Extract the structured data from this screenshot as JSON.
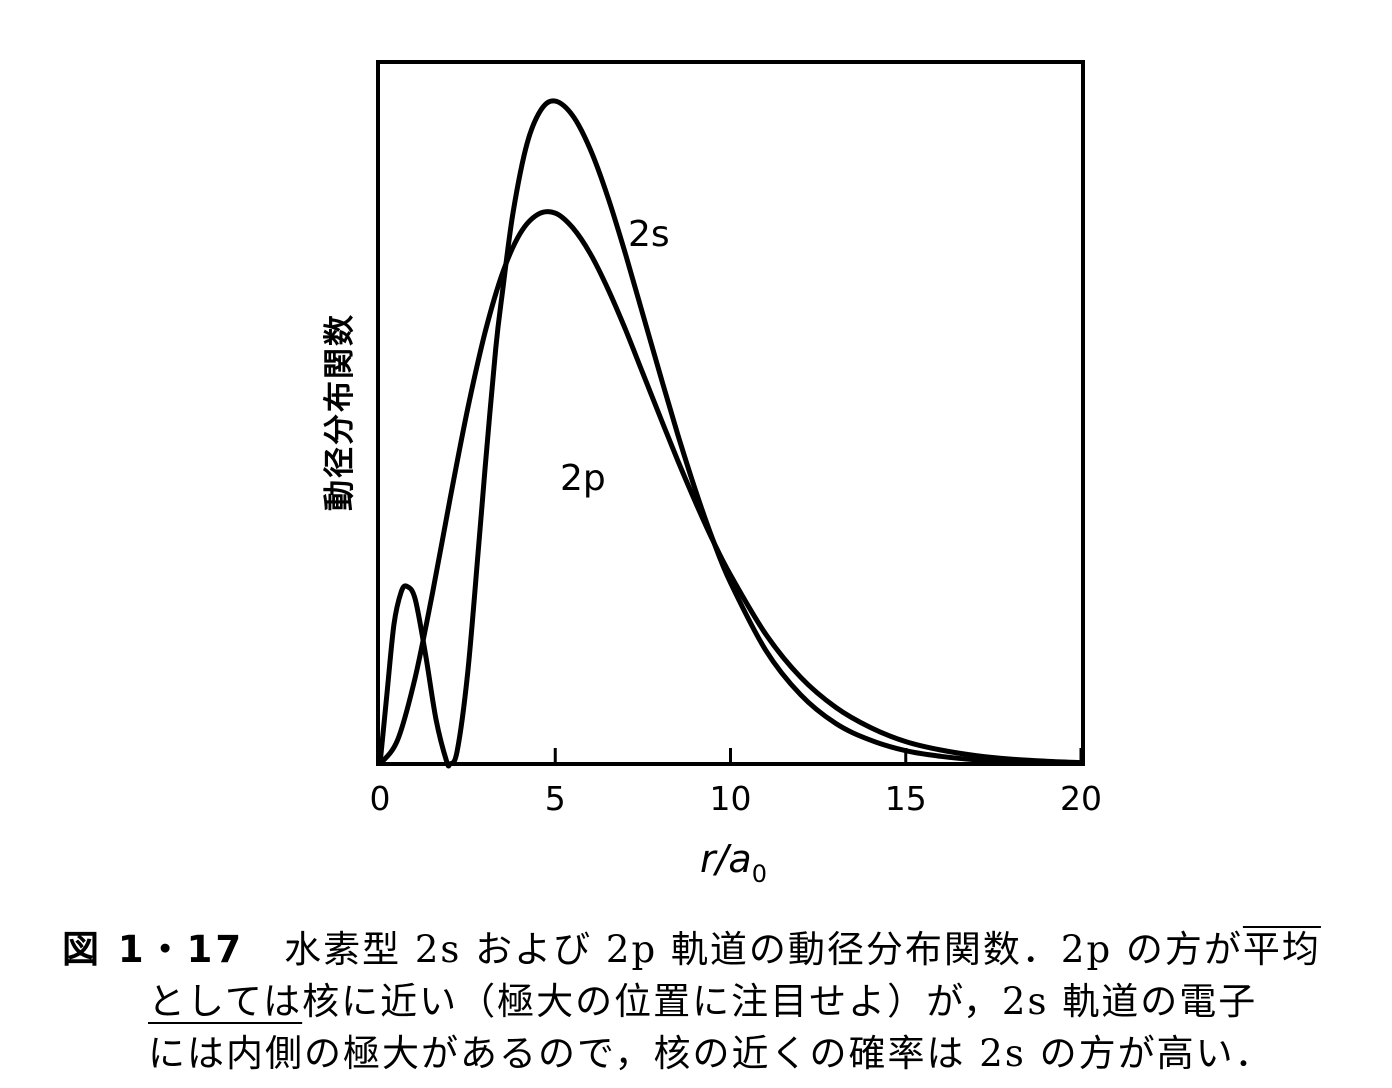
{
  "chart_data": {
    "type": "line",
    "title": "",
    "xlabel": "r/a0",
    "xlabel_main": "r/a",
    "xlabel_sub": "0",
    "ylabel": "動径分布関数",
    "xlim": [
      0,
      20
    ],
    "ylim": [
      0,
      1.0
    ],
    "x_ticks": [
      0,
      5,
      10,
      15,
      20
    ],
    "x_tick_labels": [
      "0",
      "5",
      "10",
      "15",
      "20"
    ],
    "grid": false,
    "legend": "none (curves labeled directly)",
    "series": [
      {
        "name": "2s",
        "x": [
          0,
          0.2,
          0.4,
          0.6,
          0.76,
          1.0,
          1.3,
          1.6,
          1.9,
          2.0,
          2.2,
          2.5,
          2.8,
          3.0,
          3.3,
          3.5,
          3.8,
          4.2,
          4.6,
          5.0,
          5.5,
          6.0,
          6.5,
          7.0,
          7.5,
          8.0,
          8.5,
          9.0,
          9.5,
          10.0,
          11.0,
          12.0,
          13.0,
          14.0,
          15.0,
          16.0,
          17.0,
          18.0,
          19.0,
          20.0
        ],
        "y": [
          0,
          0.101,
          0.2,
          0.245,
          0.254,
          0.236,
          0.156,
          0.063,
          0.004,
          0,
          0.018,
          0.129,
          0.302,
          0.423,
          0.593,
          0.677,
          0.789,
          0.887,
          0.935,
          0.947,
          0.926,
          0.878,
          0.81,
          0.729,
          0.642,
          0.555,
          0.47,
          0.391,
          0.32,
          0.259,
          0.163,
          0.099,
          0.058,
          0.034,
          0.019,
          0.011,
          0.006,
          0.003,
          0.002,
          0.001
        ]
      },
      {
        "name": "2p",
        "x": [
          0,
          0.5,
          1.0,
          1.5,
          2.0,
          2.5,
          3.0,
          3.5,
          4.0,
          4.5,
          5.0,
          5.5,
          6.0,
          6.5,
          7.0,
          7.5,
          8.0,
          8.5,
          9.0,
          9.5,
          10.0,
          11.0,
          12.0,
          13.0,
          14.0,
          15.0,
          16.0,
          17.0,
          18.0,
          19.0,
          20.0
        ],
        "y": [
          0,
          0.034,
          0.123,
          0.245,
          0.379,
          0.507,
          0.617,
          0.702,
          0.758,
          0.785,
          0.787,
          0.766,
          0.729,
          0.679,
          0.621,
          0.558,
          0.495,
          0.433,
          0.374,
          0.319,
          0.27,
          0.186,
          0.124,
          0.081,
          0.052,
          0.032,
          0.02,
          0.012,
          0.007,
          0.004,
          0.002
        ]
      }
    ]
  },
  "caption": {
    "fig_number": "図 1・17",
    "line1_text": "水素型 2s および 2p 軌道の動径分布関数．2p の方が",
    "line1_underlined": "平均",
    "line2_underlined": "としては",
    "line2_text": "核に近い（極大の位置に注目せよ）が，2s 軌道の電子",
    "line3_text": "には内側の極大があるので，核の近くの確率は 2s の方が高い．"
  }
}
